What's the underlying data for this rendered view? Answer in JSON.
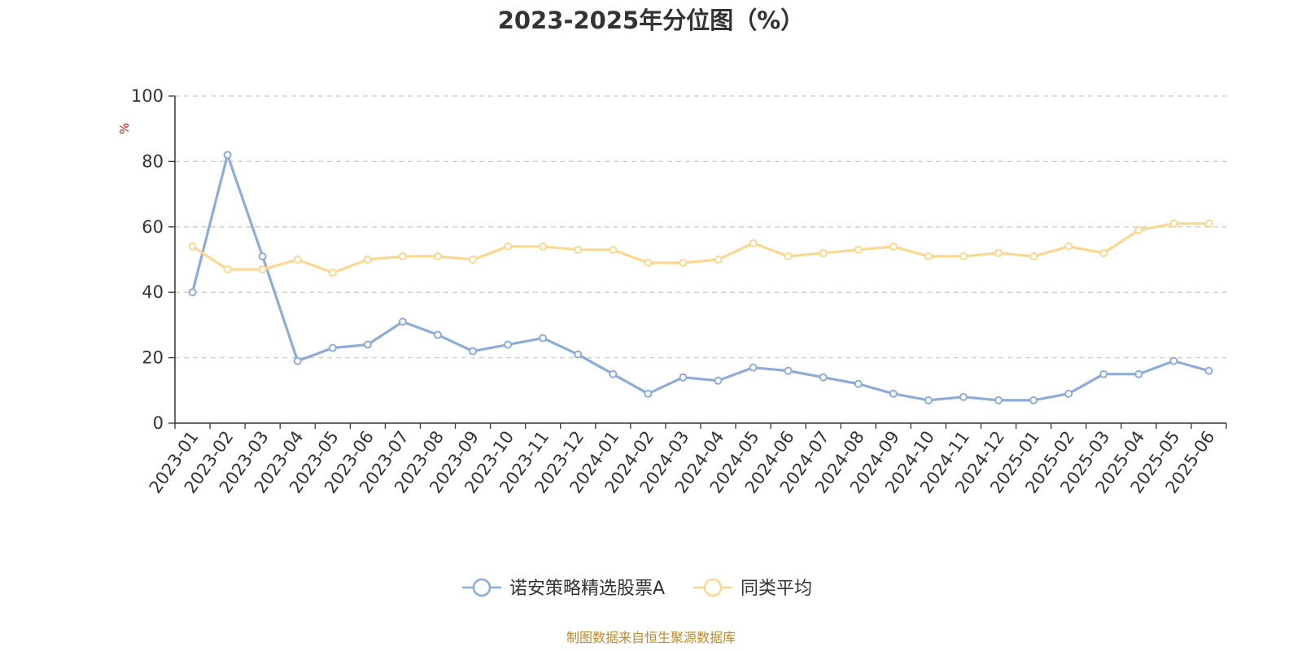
{
  "chart_data": {
    "type": "line",
    "title": "2023-2025年分位图（%）",
    "xlabel": "",
    "ylabel": "%",
    "ylim": [
      0,
      100
    ],
    "yticks": [
      0,
      20,
      40,
      60,
      80,
      100
    ],
    "grid": true,
    "legend_position": "bottom",
    "categories": [
      "2023-01",
      "2023-02",
      "2023-03",
      "2023-04",
      "2023-05",
      "2023-06",
      "2023-07",
      "2023-08",
      "2023-09",
      "2023-10",
      "2023-11",
      "2023-12",
      "2024-01",
      "2024-02",
      "2024-03",
      "2024-04",
      "2024-05",
      "2024-06",
      "2024-07",
      "2024-08",
      "2024-09",
      "2024-10",
      "2024-11",
      "2024-12",
      "2025-01",
      "2025-02",
      "2025-03",
      "2025-04",
      "2025-05",
      "2025-06"
    ],
    "series": [
      {
        "name": "诺安策略精选股票A",
        "color": "#8eacd8",
        "values": [
          40,
          82,
          51,
          19,
          23,
          24,
          31,
          27,
          22,
          24,
          26,
          21,
          15,
          9,
          14,
          13,
          17,
          16,
          14,
          12,
          9,
          7,
          8,
          7,
          7,
          9,
          15,
          15,
          19,
          16
        ]
      },
      {
        "name": "同类平均",
        "color": "#fbd890",
        "values": [
          54,
          47,
          47,
          50,
          46,
          50,
          51,
          51,
          50,
          54,
          54,
          53,
          53,
          49,
          49,
          50,
          55,
          51,
          52,
          53,
          54,
          51,
          51,
          52,
          51,
          54,
          52,
          59,
          61,
          61
        ]
      }
    ]
  },
  "source_note": "制图数据来自恒生聚源数据库"
}
